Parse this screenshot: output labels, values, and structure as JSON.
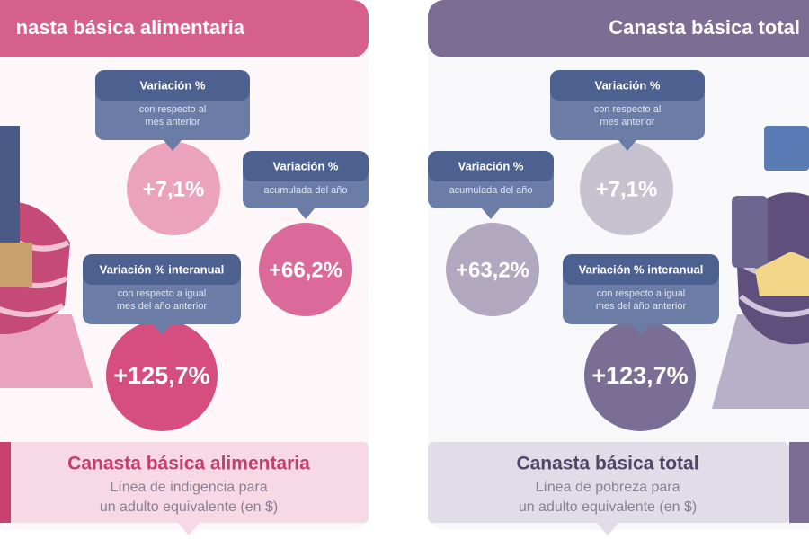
{
  "panels": [
    {
      "header": "nasta básica alimentaria",
      "indicators": [
        {
          "label": "Variación %",
          "sub": [
            "con respecto al",
            "mes anterior"
          ],
          "value": "+7,1%"
        },
        {
          "label": "Variación %",
          "sub": [
            "acumulada del año"
          ],
          "value": "+66,2%"
        },
        {
          "label": "Variación % interanual",
          "sub": [
            "con respecto a igual",
            "mes del año anterior"
          ],
          "value": "+125,7%"
        }
      ],
      "footer": {
        "title": "Canasta básica alimentaria",
        "lines": [
          "Línea de indigencia para",
          "un adulto equivalente (en $)"
        ]
      }
    },
    {
      "header": "Canasta básica total",
      "indicators": [
        {
          "label": "Variación %",
          "sub": [
            "acumulada del año"
          ],
          "value": "+63,2%"
        },
        {
          "label": "Variación %",
          "sub": [
            "con respecto al",
            "mes anterior"
          ],
          "value": "+7,1%"
        },
        {
          "label": "Variación % interanual",
          "sub": [
            "con respecto a igual",
            "mes del año anterior"
          ],
          "value": "+123,7%"
        }
      ],
      "footer": {
        "title": "Canasta básica total",
        "lines": [
          "Línea de pobreza para",
          "un adulto equivalente (en $)"
        ]
      }
    }
  ]
}
